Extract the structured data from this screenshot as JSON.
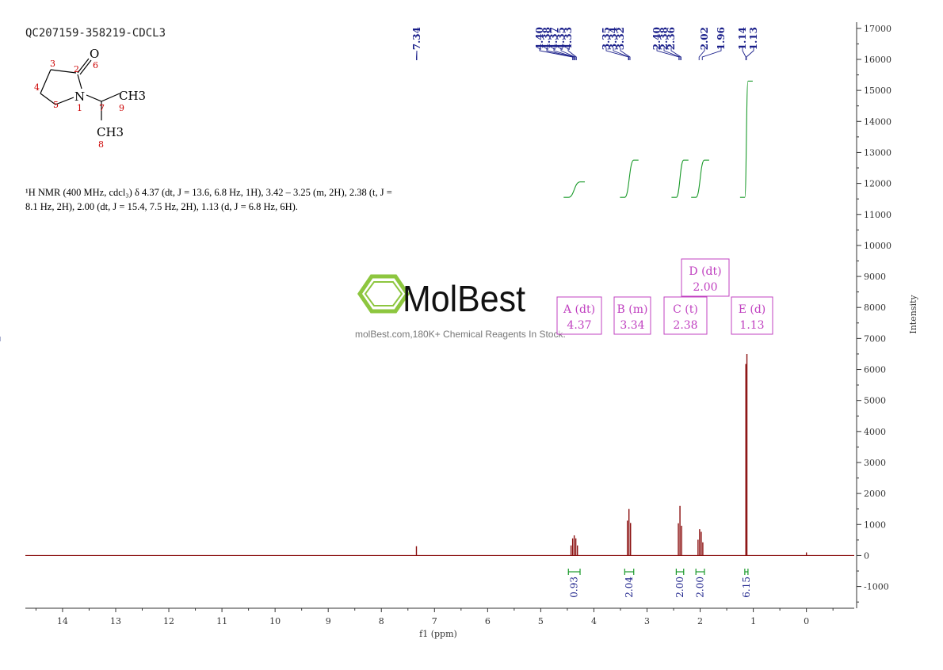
{
  "sample_id": "QC207159-358219-CDCL3",
  "nmr_text": {
    "line1": "¹H NMR (400 MHz, cdcl₃) δ 4.37 (dt, J = 13.6, 6.8 Hz, 1H), 3.42 – 3.25 (m, 2H), 2.38 (t, J =",
    "line2": "8.1 Hz, 2H), 2.00 (dt, J = 15.4, 7.5 Hz, 2H), 1.13 (d, J = 6.8 Hz, 6H)."
  },
  "structure": {
    "labels": {
      "o": "O",
      "n": "N",
      "ch3_top": "CH3",
      "ch3_bottom": "CH3"
    },
    "atom_numbers": [
      "1",
      "2",
      "3",
      "4",
      "5",
      "6",
      "7",
      "8",
      "9"
    ]
  },
  "watermark": {
    "brand": "MolBest",
    "tagline": "molBest.com,180K+ Chemical Reagents In Stock."
  },
  "peak_labels": [
    "7.34",
    "4.40",
    "4.38",
    "4.37",
    "4.35",
    "4.33",
    "3.35",
    "3.34",
    "3.32",
    "2.40",
    "2.38",
    "2.36",
    "2.02",
    "1.96",
    "1.14",
    "1.13"
  ],
  "multiplets": [
    {
      "letter": "A",
      "mult": "(dt)",
      "shift": "4.37"
    },
    {
      "letter": "B",
      "mult": "(m)",
      "shift": "3.34"
    },
    {
      "letter": "C",
      "mult": "(t)",
      "shift": "2.38"
    },
    {
      "letter": "D",
      "mult": "(dt)",
      "shift": "2.00"
    },
    {
      "letter": "E",
      "mult": "(d)",
      "shift": "1.13"
    }
  ],
  "colors": {
    "spectrum": "#8b1010",
    "peak_label": "#1a1f8a",
    "integral": "#1a9a2a",
    "multiplet_box": "#c040c0",
    "axis": "#333333",
    "watermark_green": "#8dc63f"
  },
  "chart_data": {
    "type": "line",
    "xlabel": "f1 (ppm)",
    "ylabel": "Intensity",
    "xlim": [
      14.7,
      -0.9
    ],
    "ylim": [
      -1700,
      17200
    ],
    "x_ticks": [
      14,
      13,
      12,
      11,
      10,
      9,
      8,
      7,
      6,
      5,
      4,
      3,
      2,
      1,
      0
    ],
    "y_ticks": [
      17000,
      16000,
      15000,
      14000,
      13000,
      12000,
      11000,
      10000,
      9000,
      8000,
      7000,
      6000,
      5000,
      4000,
      3000,
      2000,
      1000,
      0,
      -1000
    ],
    "peaks": [
      {
        "ppm": 7.34,
        "height": 300
      },
      {
        "ppm": 4.37,
        "height": 650
      },
      {
        "ppm": 3.34,
        "height": 1500
      },
      {
        "ppm": 2.38,
        "height": 1600
      },
      {
        "ppm": 2.0,
        "height": 850
      },
      {
        "ppm": 1.13,
        "height": 6500
      },
      {
        "ppm": 0.0,
        "height": 100
      }
    ],
    "integrals": [
      {
        "from": 4.48,
        "to": 4.26,
        "value": "0.93"
      },
      {
        "from": 3.42,
        "to": 3.25,
        "value": "2.04"
      },
      {
        "from": 2.45,
        "to": 2.31,
        "value": "2.00"
      },
      {
        "from": 2.08,
        "to": 1.92,
        "value": "2.00"
      },
      {
        "from": 1.16,
        "to": 1.1,
        "value": "6.15"
      }
    ]
  }
}
